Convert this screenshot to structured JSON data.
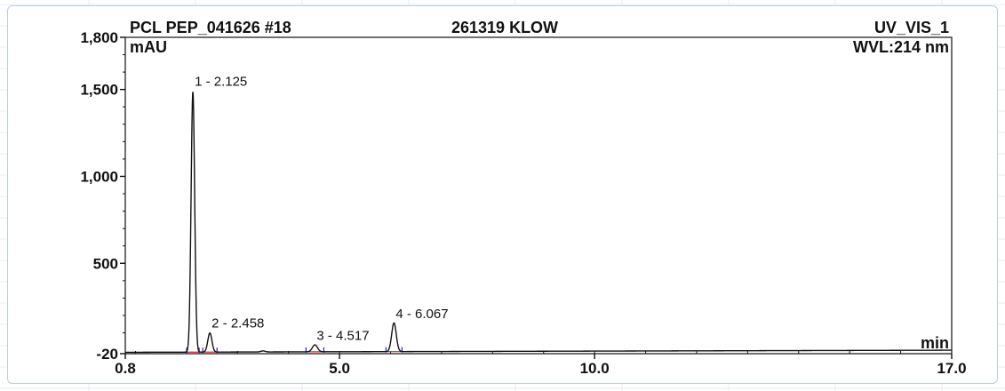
{
  "chart_data": {
    "type": "line",
    "sample": "PCL PEP_041626 #18",
    "sample_id": "261319 KLOW",
    "channel": "UV_VIS_1",
    "wavelength": "WVL:214 nm",
    "ylabel": "mAU",
    "xlabel": "min",
    "xlim": [
      0.8,
      17.0
    ],
    "ylim": [
      -20,
      1800
    ],
    "x_ticks": [
      {
        "value": 0.8,
        "label": "0.8"
      },
      {
        "value": 5.0,
        "label": "5.0"
      },
      {
        "value": 10.0,
        "label": "10.0"
      },
      {
        "value": 17.0,
        "label": "17.0"
      }
    ],
    "y_ticks": [
      {
        "value": -20,
        "label": "-20"
      },
      {
        "value": 500,
        "label": "500"
      },
      {
        "value": 1000,
        "label": "1,000"
      },
      {
        "value": 1500,
        "label": "1,500"
      },
      {
        "value": 1800,
        "label": "1,800"
      }
    ],
    "peaks": [
      {
        "label": "1 - 2.125",
        "rt": 2.125,
        "height": 1500,
        "width": 0.035
      },
      {
        "label": "2 - 2.458",
        "rt": 2.458,
        "height": 110,
        "width": 0.04
      },
      {
        "label": "3 - 4.517",
        "rt": 4.517,
        "height": 40,
        "width": 0.05
      },
      {
        "label": "4 - 6.067",
        "rt": 6.067,
        "height": 165,
        "width": 0.045
      }
    ],
    "minor_peaks": [
      {
        "rt": 3.5,
        "height": 6,
        "width": 0.04
      }
    ],
    "baseline": {
      "start": -12,
      "end": 0
    },
    "colors": {
      "trace": "#111111",
      "baseline_marks": "#d42020",
      "delim_marks": "#2020c0",
      "panel_border": "#b9cde3"
    }
  }
}
